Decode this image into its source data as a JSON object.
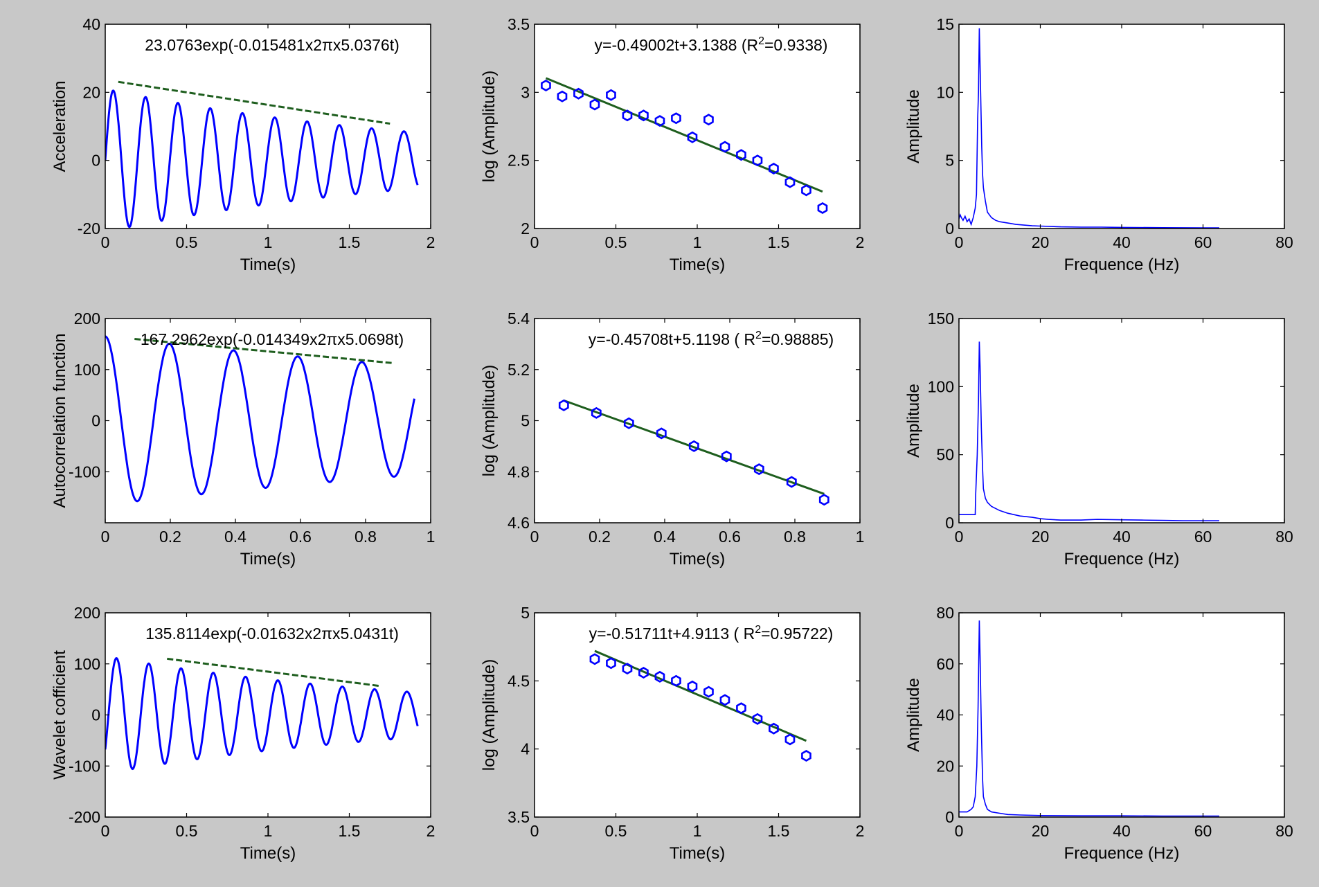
{
  "chart_data": [
    {
      "type": "line",
      "title": "",
      "xlabel": "Time(s)",
      "ylabel": "Acceleration",
      "xlim": [
        0,
        2
      ],
      "ylim": [
        -20,
        40
      ],
      "xticks": [
        "0",
        "0.5",
        "1",
        "1.5",
        "2"
      ],
      "yticks": [
        "-20",
        "0",
        "20",
        "40"
      ],
      "annotation": "23.0763exp(-0.015481x2πx5.0376t)",
      "signal": {
        "name": "signal",
        "amp": 21,
        "decay": 0.49,
        "freq": 5.0376,
        "phase": -1.5708,
        "t0": 0,
        "t1": 1.92,
        "offset": 0
      },
      "envelope": {
        "name": "fitted envelope",
        "x": [
          0.08,
          1.75
        ],
        "y": [
          23.0763,
          10.8
        ]
      }
    },
    {
      "type": "scatter",
      "title": "",
      "xlabel": "Time(s)",
      "ylabel": "log (Amplitude)",
      "xlim": [
        0,
        2
      ],
      "ylim": [
        2,
        3.5
      ],
      "xticks": [
        "0",
        "0.5",
        "1",
        "1.5",
        "2"
      ],
      "yticks": [
        "2",
        "2.5",
        "3",
        "3.5"
      ],
      "annotation": "y=-0.49002t+3.1388 (R²=0.9338)",
      "points": {
        "name": "log peaks",
        "x": [
          0.07,
          0.17,
          0.27,
          0.37,
          0.47,
          0.57,
          0.67,
          0.77,
          0.87,
          0.97,
          1.07,
          1.17,
          1.27,
          1.37,
          1.47,
          1.57,
          1.67,
          1.77
        ],
        "y": [
          3.05,
          2.97,
          2.99,
          2.91,
          2.98,
          2.83,
          2.83,
          2.79,
          2.81,
          2.67,
          2.8,
          2.6,
          2.54,
          2.5,
          2.44,
          2.34,
          2.28,
          2.15
        ]
      },
      "fit": {
        "name": "linear fit",
        "x": [
          0.07,
          1.77
        ],
        "y": [
          3.104,
          2.271
        ]
      }
    },
    {
      "type": "line",
      "title": "",
      "xlabel": "Frequence (Hz)",
      "ylabel": "Amplitude",
      "xlim": [
        0,
        80
      ],
      "ylim": [
        0,
        15
      ],
      "xticks": [
        "0",
        "20",
        "40",
        "60",
        "80"
      ],
      "yticks": [
        "0",
        "5",
        "10",
        "15"
      ],
      "spectrum": {
        "name": "amplitude spectrum",
        "x": [
          0,
          0.3,
          0.6,
          1,
          1.5,
          2,
          2.5,
          3,
          3.5,
          4,
          4.3,
          4.6,
          4.8,
          5,
          5.2,
          5.4,
          5.6,
          5.8,
          6,
          6.5,
          7,
          8,
          9,
          10,
          12,
          14,
          16,
          18,
          20,
          25,
          30,
          35,
          40,
          50,
          60,
          64
        ],
        "y": [
          0.7,
          1.0,
          0.8,
          0.6,
          0.9,
          0.5,
          0.7,
          0.3,
          0.8,
          1.5,
          2.5,
          8,
          10,
          14.7,
          12,
          9,
          6,
          4,
          3,
          2,
          1.2,
          0.8,
          0.6,
          0.5,
          0.4,
          0.3,
          0.25,
          0.2,
          0.18,
          0.12,
          0.1,
          0.1,
          0.08,
          0.06,
          0.05,
          0.05
        ]
      }
    },
    {
      "type": "line",
      "title": "",
      "xlabel": "Time(s)",
      "ylabel": "Autocorrelation function",
      "xlim": [
        0,
        1
      ],
      "ylim": [
        -200,
        200
      ],
      "xticks": [
        "0",
        "0.2",
        "0.4",
        "0.6",
        "0.8",
        "1"
      ],
      "yticks": [
        "-100",
        "0",
        "100",
        "200"
      ],
      "annotation": "167.2962exp(-0.014349x2πx5.0698t)",
      "signal": {
        "name": "signal",
        "amp": 165,
        "decay": 0.46,
        "freq": 5.0698,
        "phase": 0,
        "t0": 0,
        "t1": 0.95,
        "offset": 0
      },
      "envelope": {
        "name": "fitted envelope",
        "x": [
          0.09,
          0.88
        ],
        "y": [
          160,
          113
        ]
      }
    },
    {
      "type": "scatter",
      "title": "",
      "xlabel": "Time(s)",
      "ylabel": "log (Amplitude)",
      "xlim": [
        0,
        1
      ],
      "ylim": [
        4.6,
        5.4
      ],
      "xticks": [
        "0",
        "0.2",
        "0.4",
        "0.6",
        "0.8",
        "1"
      ],
      "yticks": [
        "4.6",
        "4.8",
        "5",
        "5.2",
        "5.4"
      ],
      "annotation": "y=-0.45708t+5.1198 ( R²=0.98885)",
      "points": {
        "name": "log peaks",
        "x": [
          0.09,
          0.19,
          0.29,
          0.39,
          0.49,
          0.59,
          0.69,
          0.79,
          0.89
        ],
        "y": [
          5.06,
          5.03,
          4.99,
          4.95,
          4.9,
          4.86,
          4.81,
          4.76,
          4.69
        ]
      },
      "fit": {
        "name": "linear fit",
        "x": [
          0.09,
          0.89
        ],
        "y": [
          5.079,
          4.713
        ]
      }
    },
    {
      "type": "line",
      "title": "",
      "xlabel": "Frequence (Hz)",
      "ylabel": "Amplitude",
      "xlim": [
        0,
        80
      ],
      "ylim": [
        0,
        150
      ],
      "xticks": [
        "0",
        "20",
        "40",
        "60",
        "80"
      ],
      "yticks": [
        "0",
        "50",
        "100",
        "150"
      ],
      "spectrum": {
        "name": "amplitude spectrum",
        "x": [
          0,
          4,
          4.1,
          4.5,
          4.8,
          5,
          5.2,
          5.5,
          5.8,
          6,
          6.5,
          7,
          8,
          10,
          12,
          15,
          18,
          20,
          22,
          25,
          30,
          34,
          40,
          45,
          50,
          55,
          60,
          64
        ],
        "y": [
          6,
          6,
          20,
          50,
          90,
          133,
          115,
          70,
          40,
          25,
          18,
          15,
          12,
          9,
          7,
          5,
          4,
          3,
          2.5,
          2,
          2,
          2.5,
          2.2,
          2,
          1.8,
          1.5,
          1.5,
          1.5
        ]
      }
    },
    {
      "type": "line",
      "title": "",
      "xlabel": "Time(s)",
      "ylabel": "Wavelet cofficient",
      "xlim": [
        0,
        2
      ],
      "ylim": [
        -200,
        200
      ],
      "xticks": [
        "0",
        "0.5",
        "1",
        "1.5",
        "2"
      ],
      "yticks": [
        "-200",
        "-100",
        "0",
        "100",
        "200"
      ],
      "annotation": "135.8114exp(-0.01632x2πx5.0431t)",
      "signal": {
        "name": "signal",
        "amp": 115,
        "decay": 0.5,
        "freq": 5.0431,
        "phase": -2.2,
        "t0": 0,
        "t1": 1.92,
        "offset": 0
      },
      "envelope": {
        "name": "fitted envelope",
        "x": [
          0.38,
          1.68
        ],
        "y": [
          110,
          57
        ]
      }
    },
    {
      "type": "scatter",
      "title": "",
      "xlabel": "Time(s)",
      "ylabel": "log (Amplitude)",
      "xlim": [
        0,
        2
      ],
      "ylim": [
        3.5,
        5
      ],
      "xticks": [
        "0",
        "0.5",
        "1",
        "1.5",
        "2"
      ],
      "yticks": [
        "3.5",
        "4",
        "4.5",
        "5"
      ],
      "annotation": "y=-0.51711t+4.9113 ( R²=0.95722)",
      "points": {
        "name": "log peaks",
        "x": [
          0.37,
          0.47,
          0.57,
          0.67,
          0.77,
          0.87,
          0.97,
          1.07,
          1.17,
          1.27,
          1.37,
          1.47,
          1.57,
          1.67
        ],
        "y": [
          4.66,
          4.63,
          4.59,
          4.56,
          4.53,
          4.5,
          4.46,
          4.42,
          4.36,
          4.3,
          4.22,
          4.15,
          4.07,
          3.95
        ]
      },
      "fit": {
        "name": "linear fit",
        "x": [
          0.37,
          1.67
        ],
        "y": [
          4.72,
          4.06
        ]
      }
    },
    {
      "type": "line",
      "title": "",
      "xlabel": "Frequence (Hz)",
      "ylabel": "Amplitude",
      "xlim": [
        0,
        80
      ],
      "ylim": [
        0,
        80
      ],
      "xticks": [
        "0",
        "20",
        "40",
        "60",
        "80"
      ],
      "yticks": [
        "0",
        "20",
        "40",
        "60",
        "80"
      ],
      "spectrum": {
        "name": "amplitude spectrum",
        "x": [
          0,
          1,
          2,
          3,
          3.5,
          4,
          4.4,
          4.7,
          5,
          5.2,
          5.5,
          5.8,
          6,
          6.5,
          7,
          8,
          10,
          12,
          15,
          20,
          30,
          40,
          50,
          60,
          64
        ],
        "y": [
          2,
          2,
          2,
          3,
          4,
          8,
          20,
          43,
          77,
          63,
          35,
          15,
          8,
          5,
          3,
          2,
          1.5,
          1,
          0.8,
          0.6,
          0.5,
          0.5,
          0.4,
          0.4,
          0.4
        ]
      }
    }
  ],
  "colors": {
    "signal": "#0000ff",
    "fit": "#1e5e1e",
    "axes": "#000000",
    "figure_bg": "#c8c8c8",
    "plot_bg": "#ffffff"
  }
}
